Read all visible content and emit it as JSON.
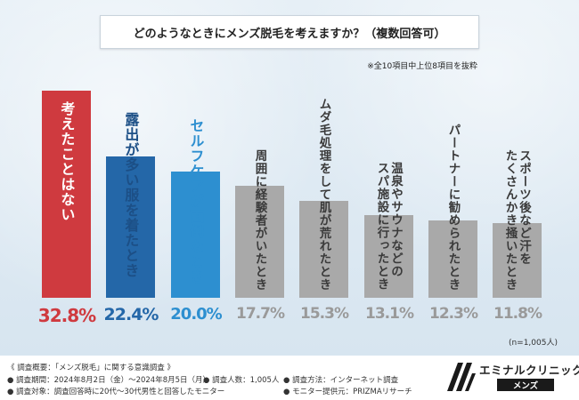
{
  "colors": {
    "top": "#cf3a3f",
    "second": "#2467a8",
    "third": "#2d8fd0",
    "rest": "#a9a9a9"
  },
  "chart_data": {
    "type": "bar",
    "title": "どのようなときにメンズ脱毛を考えますか？（複数回答可）",
    "note": "※全10項目中上位8項目を抜粋",
    "categories": [
      "考えたことはない",
      "露出が多い服を着たとき",
      "セルフケアが面倒なとき",
      "周囲に経験者がいたとき",
      "ムダ毛処理をして肌が荒れたとき",
      "温泉やサウナなどのスパ施設に行ったとき",
      "パートナーに勧められたとき",
      "スポーツ後など汗をたくさんかき掻いたとき"
    ],
    "labels": [
      "考えたことはない",
      "露出が多い服を着たとき",
      "セルフケアが面倒なとき",
      "周囲に経験者がいたとき",
      "ムダ毛処理をして肌が荒れたとき",
      "温泉やサウナなどの\nスパ施設に行ったとき",
      "パートナーに勧められたとき",
      "スポーツ後など汗を\nたくさんかき掻いたとき"
    ],
    "values": [
      32.8,
      22.4,
      20.0,
      17.7,
      15.3,
      13.1,
      12.3,
      11.8
    ],
    "value_labels": [
      "32.8%",
      "22.4%",
      "20.0%",
      "17.7%",
      "15.3%",
      "13.1%",
      "12.3%",
      "11.8%"
    ],
    "unit": "%",
    "ylim": [
      0,
      32.8
    ],
    "grid": false,
    "legend": "none",
    "sample": "(n=1,005人)"
  },
  "footer": {
    "overview": "《 調査概要：「メンズ脱毛」に関する意識調査 》",
    "period": "● 調査期間：2024年8月2日（金）～2024年8月5日（月）",
    "count": "● 調査人数：1,005人",
    "method": "● 調査方法：インターネット調査",
    "target": "● 調査対象：調査回答時に20代～30代男性と回答したモニター",
    "provider": "● モニター提供元：PRIZMAリサーチ"
  },
  "logo": {
    "name": "エミナルクリニック",
    "sub": "メンズ"
  }
}
